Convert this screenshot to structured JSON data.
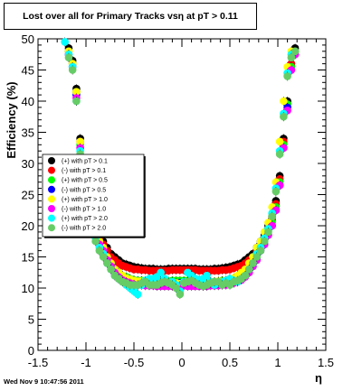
{
  "title": "Lost over all for Primary Tracks vsη at pT > 0.11",
  "footer": "Wed Nov  9 10:47:56 2011",
  "chart_data": {
    "type": "scatter",
    "title": "Lost over all for Primary Tracks vsη at pT > 0.11",
    "xlabel": "η",
    "ylabel": "Efficiency (%)",
    "xlim": [
      -1.5,
      1.5
    ],
    "ylim": [
      0,
      50
    ],
    "xticks": [
      "-1.5",
      "-1",
      "-0.5",
      "0",
      "0.5",
      "1",
      "1.5"
    ],
    "yticks": [
      "0",
      "5",
      "10",
      "15",
      "20",
      "25",
      "30",
      "35",
      "40",
      "45",
      "50"
    ],
    "grid": false,
    "legend_position": "center-left",
    "eta": [
      -1.22,
      -1.18,
      -1.14,
      -1.1,
      -1.06,
      -1.02,
      -0.98,
      -0.94,
      -0.9,
      -0.86,
      -0.82,
      -0.78,
      -0.74,
      -0.7,
      -0.66,
      -0.62,
      -0.58,
      -0.54,
      -0.5,
      -0.46,
      -0.42,
      -0.38,
      -0.34,
      -0.3,
      -0.26,
      -0.22,
      -0.18,
      -0.14,
      -0.1,
      -0.06,
      -0.02,
      0.02,
      0.06,
      0.1,
      0.14,
      0.18,
      0.22,
      0.26,
      0.3,
      0.34,
      0.38,
      0.42,
      0.46,
      0.5,
      0.54,
      0.58,
      0.62,
      0.66,
      0.7,
      0.74,
      0.78,
      0.82,
      0.86,
      0.9,
      0.94,
      0.98,
      1.02,
      1.06,
      1.1,
      1.14,
      1.18,
      1.22
    ],
    "series": [
      {
        "name": "(+) with pT > 0.1",
        "color": "#000000",
        "values": [
          null,
          48.5,
          46.5,
          42,
          34,
          28,
          24,
          21.5,
          20,
          18.5,
          17.5,
          16.5,
          15.5,
          15,
          14.5,
          14,
          13.8,
          13.6,
          13.4,
          13.3,
          13.2,
          13.1,
          13.1,
          13.1,
          13.0,
          13.0,
          13.0,
          13.1,
          13.1,
          13.1,
          13.1,
          13.1,
          13.1,
          13.1,
          13.1,
          13.0,
          13.0,
          13.0,
          13.0,
          13.1,
          13.1,
          13.2,
          13.3,
          13.4,
          13.6,
          13.8,
          14,
          14.5,
          15,
          15.5,
          16.5,
          17.5,
          18.5,
          20,
          21.5,
          24,
          28,
          34,
          40,
          46,
          48.5,
          null
        ]
      },
      {
        "name": "(-) with pT > 0.1",
        "color": "#ff0000",
        "values": [
          null,
          48,
          46,
          41.5,
          33.5,
          27.5,
          23.5,
          21,
          19.5,
          18,
          17,
          16,
          15,
          14.5,
          14,
          13.6,
          13.4,
          13.2,
          13.0,
          13.0,
          12.9,
          12.9,
          12.8,
          12.8,
          12.8,
          12.8,
          12.8,
          12.8,
          12.9,
          12.9,
          12.9,
          12.9,
          12.9,
          12.9,
          12.9,
          12.8,
          12.8,
          12.8,
          12.8,
          12.8,
          12.8,
          12.9,
          12.9,
          13.0,
          13.2,
          13.4,
          13.6,
          14,
          14.5,
          15,
          16,
          17,
          18,
          19.5,
          21,
          23.5,
          27.5,
          33.5,
          39.5,
          46,
          48,
          null
        ]
      },
      {
        "name": "(+) with pT > 0.5",
        "color": "#00ff00",
        "values": [
          null,
          48,
          46,
          41.5,
          33,
          27,
          23,
          20.5,
          19,
          17.5,
          16.5,
          15,
          14,
          13,
          12.5,
          12,
          11.8,
          11.5,
          11.3,
          11.2,
          11.2,
          11.1,
          11.0,
          11.0,
          11.0,
          11.0,
          11.1,
          11.1,
          11.2,
          11.2,
          11.2,
          11.2,
          11.2,
          11.2,
          11.1,
          11.1,
          11.0,
          11.0,
          11.0,
          11.0,
          11.1,
          11.2,
          11.2,
          11.3,
          11.5,
          11.8,
          12,
          12.5,
          13,
          14,
          15,
          16.5,
          17.5,
          19,
          20.5,
          23,
          27,
          33,
          39.5,
          45.5,
          48,
          null
        ]
      },
      {
        "name": "(-) with pT > 0.5",
        "color": "#0000ff",
        "values": [
          null,
          47.5,
          45.5,
          41,
          32.5,
          26.5,
          22.5,
          20,
          18.5,
          17,
          16,
          14.5,
          13.5,
          12.5,
          12,
          11.6,
          11.3,
          11.1,
          11.0,
          10.9,
          10.8,
          10.8,
          10.7,
          10.7,
          10.7,
          10.7,
          10.7,
          10.7,
          10.8,
          10.8,
          10.8,
          10.8,
          10.8,
          10.8,
          10.7,
          10.7,
          10.7,
          10.7,
          10.7,
          10.7,
          10.8,
          10.8,
          10.9,
          11.0,
          11.1,
          11.3,
          11.6,
          12,
          12.5,
          13.5,
          14.5,
          16,
          17,
          18.5,
          20,
          22.5,
          26.5,
          32.5,
          39,
          45,
          47.5,
          null
        ]
      },
      {
        "name": "(+) with pT > 1.0",
        "color": "#ffff00",
        "values": [
          null,
          48,
          46,
          41.5,
          33.5,
          27,
          23,
          20.5,
          19,
          17.5,
          16.5,
          15,
          14,
          13,
          12.5,
          12,
          11.6,
          11.4,
          11.2,
          11.1,
          11.1,
          11.0,
          11.0,
          11.0,
          11.0,
          10.9,
          10.9,
          10.9,
          10.8,
          10.8,
          10.7,
          10.7,
          10.8,
          10.8,
          10.9,
          10.9,
          11.0,
          11.0,
          11.0,
          11.0,
          11.1,
          11.1,
          11.2,
          11.4,
          11.6,
          12,
          12.5,
          13,
          14,
          15,
          16.5,
          17.5,
          19,
          20.5,
          23,
          27,
          33.5,
          40,
          45.5,
          48,
          null,
          null
        ]
      },
      {
        "name": "(-) with pT > 1.0",
        "color": "#ff00ff",
        "values": [
          null,
          47.5,
          45.5,
          40.5,
          32.5,
          26.5,
          22.5,
          20,
          18.5,
          17,
          16,
          14.5,
          13.5,
          12.5,
          11.8,
          11.3,
          11.0,
          10.8,
          10.6,
          10.5,
          10.5,
          10.4,
          10.4,
          10.4,
          10.3,
          10.3,
          10.3,
          10.3,
          10.3,
          10.3,
          10.4,
          10.4,
          10.3,
          10.3,
          10.3,
          10.3,
          10.3,
          10.3,
          10.4,
          10.4,
          10.4,
          10.5,
          10.5,
          10.6,
          10.8,
          11.0,
          11.3,
          11.8,
          12.5,
          13.5,
          14.5,
          16,
          17,
          18.5,
          20,
          22.5,
          26.5,
          32.5,
          38.5,
          45,
          47.5,
          null
        ]
      },
      {
        "name": "(+) with pT > 2.0",
        "color": "#00ffff",
        "values": [
          49.5,
          47.5,
          45.5,
          40,
          32,
          26,
          22,
          19.5,
          18,
          16.5,
          15.5,
          14,
          13,
          12,
          11.5,
          11,
          10.5,
          10,
          9.5,
          9.0,
          10.5,
          11.2,
          11.5,
          11.5,
          11.8,
          12.5,
          11.5,
          10.8,
          11.0,
          10.5,
          9.5,
          11.0,
          12.5,
          12,
          11.5,
          11.3,
          11.5,
          12,
          11.0,
          10.5,
          10.8,
          11.0,
          11.2,
          11.5,
          11.2,
          11.0,
          11.5,
          12,
          13,
          14,
          15.5,
          16.5,
          18,
          19.5,
          22,
          26,
          32,
          38,
          44.5,
          47.5,
          null,
          null
        ]
      },
      {
        "name": "(-) with pT > 2.0",
        "color": "#66cc66",
        "values": [
          null,
          47,
          45,
          40,
          31.5,
          25.5,
          21.5,
          19,
          17.5,
          16,
          15,
          14,
          13,
          12,
          11.5,
          11,
          10.8,
          10.5,
          10.5,
          10.5,
          10.8,
          11,
          10.5,
          10.5,
          10.5,
          10.8,
          11,
          10.8,
          10.5,
          10.0,
          9,
          10.8,
          11,
          11.2,
          10.8,
          10.5,
          10.3,
          10.5,
          10.8,
          11,
          11,
          10.5,
          10.8,
          10.5,
          11,
          11.2,
          11.5,
          12,
          13,
          14,
          15,
          16,
          17.5,
          19,
          21.5,
          25.5,
          31.5,
          37.5,
          44,
          47,
          48,
          null
        ]
      }
    ]
  }
}
